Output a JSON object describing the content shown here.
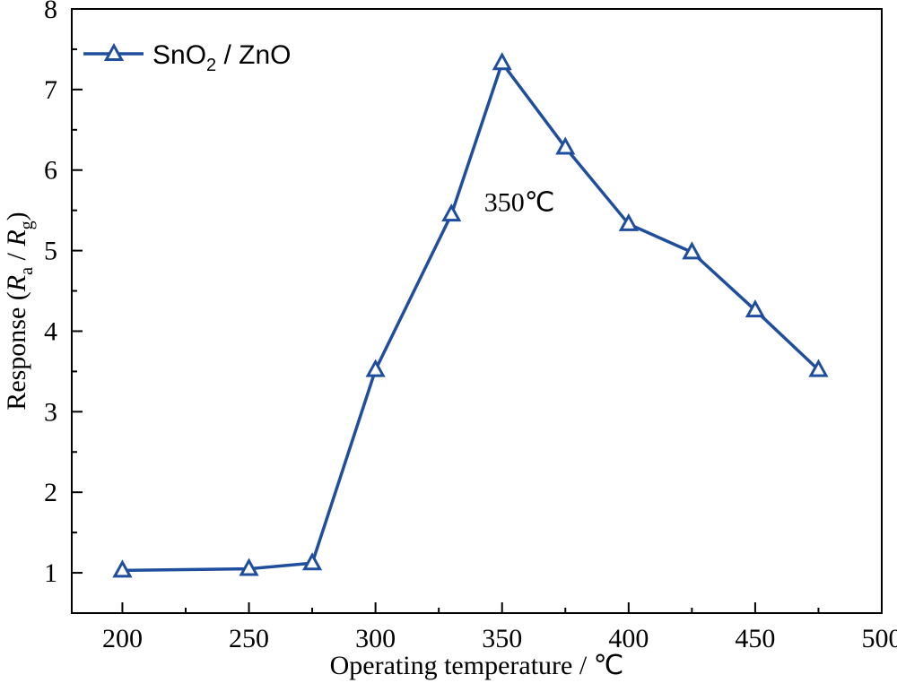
{
  "chart_data": {
    "type": "line",
    "xlabel": "Operating temperature / ℃",
    "ylabel_prefix": "Response (",
    "ylabel_R1": "R",
    "ylabel_sub1": "a",
    "ylabel_mid": " / ",
    "ylabel_R2": "R",
    "ylabel_sub2": "g",
    "ylabel_suffix": ")",
    "xlim": [
      180,
      500
    ],
    "ylim": [
      0.5,
      8
    ],
    "xticks": [
      200,
      250,
      300,
      350,
      400,
      450,
      500
    ],
    "yticks": [
      1,
      2,
      3,
      4,
      5,
      6,
      7,
      8
    ],
    "grid": false,
    "legend_position": "top-left",
    "series": [
      {
        "name_main": "SnO",
        "name_sub": "2",
        "name_rest": " / ZnO",
        "color": "#1f4e9c",
        "marker": "open-triangle",
        "x": [
          200,
          250,
          275,
          300,
          330,
          350,
          375,
          400,
          425,
          450,
          475
        ],
        "y": [
          1.03,
          1.05,
          1.12,
          3.52,
          5.45,
          7.33,
          6.28,
          5.33,
          4.98,
          4.26,
          3.52
        ]
      }
    ],
    "annotation": {
      "text": "350℃",
      "x": 350,
      "y": 5.6
    }
  }
}
